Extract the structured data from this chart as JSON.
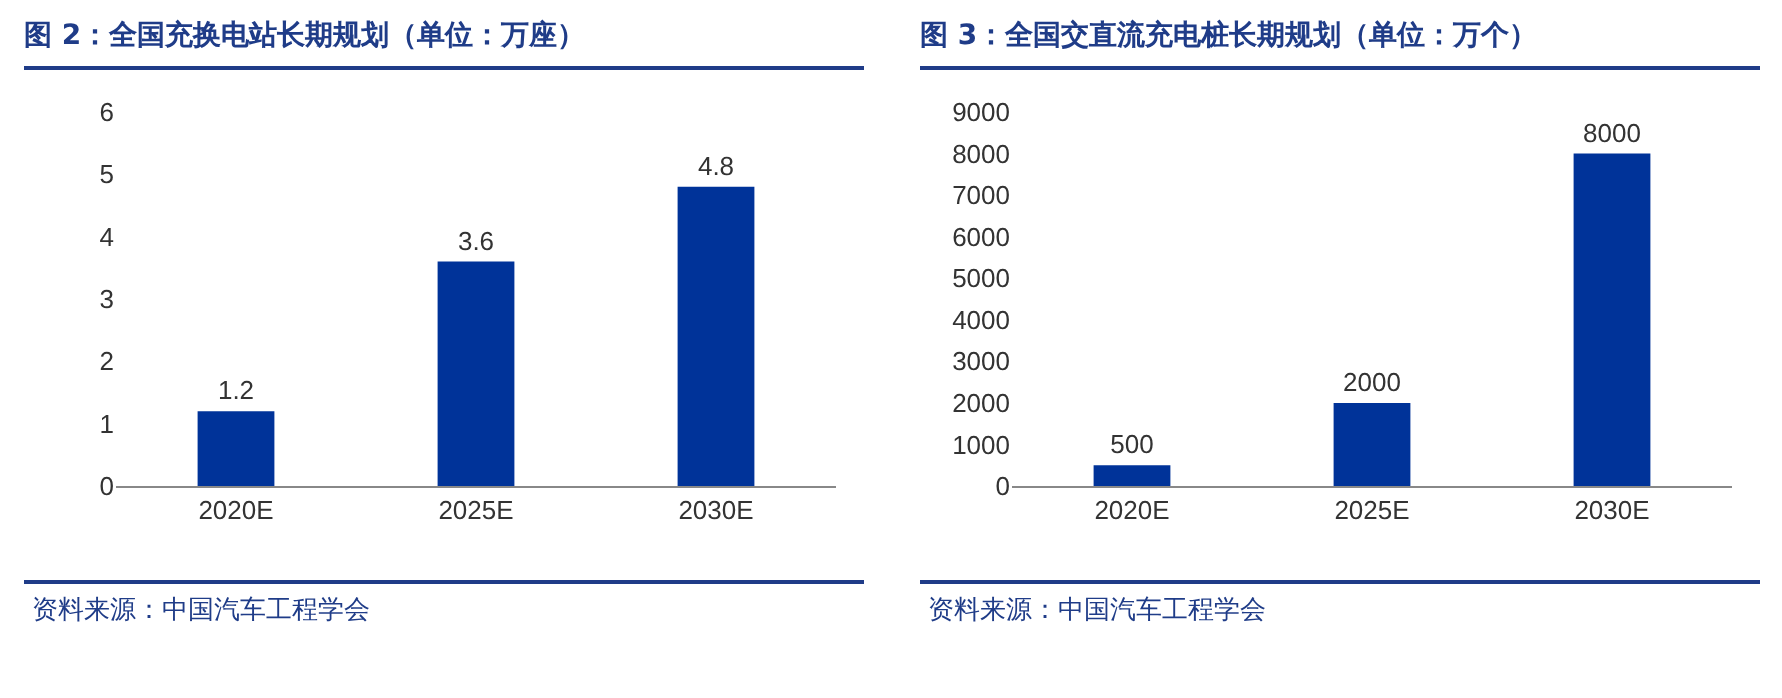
{
  "chart_data": [
    {
      "type": "bar",
      "title": "图 2：全国充换电站长期规划（单位：万座）",
      "categories": [
        "2020E",
        "2025E",
        "2030E"
      ],
      "values": [
        1.2,
        3.6,
        4.8
      ],
      "color": "#003399",
      "ylim": [
        0,
        6
      ],
      "yticks": [
        0,
        1,
        2,
        3,
        4,
        5,
        6
      ],
      "grid": false,
      "data_labels": true,
      "annotations": [
        "资料来源：中国汽车工程学会"
      ]
    },
    {
      "type": "bar",
      "title": "图 3：全国交直流充电桩长期规划（单位：万个）",
      "categories": [
        "2020E",
        "2025E",
        "2030E"
      ],
      "values": [
        500,
        2000,
        8000
      ],
      "color": "#003399",
      "ylim": [
        0,
        9000
      ],
      "yticks": [
        0,
        1000,
        2000,
        3000,
        4000,
        5000,
        6000,
        7000,
        8000,
        9000
      ],
      "grid": false,
      "data_labels": true,
      "annotations": [
        "资料来源：中国汽车工程学会"
      ]
    }
  ]
}
